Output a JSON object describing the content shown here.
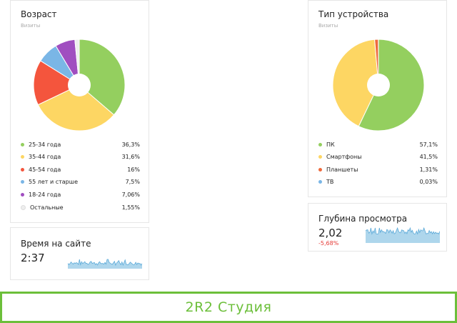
{
  "age_card": {
    "title": "Возраст",
    "subtitle": "Визиты",
    "legend": [
      {
        "label": "25-34 года",
        "value": "36,3%",
        "color": "#94cf5f"
      },
      {
        "label": "35-44 года",
        "value": "31,6%",
        "color": "#fdd663"
      },
      {
        "label": "45-54 года",
        "value": "16%",
        "color": "#f4553d"
      },
      {
        "label": "55 лет и старше",
        "value": "7,5%",
        "color": "#7ab6e6"
      },
      {
        "label": "18-24 года",
        "value": "7,06%",
        "color": "#a04ec0"
      },
      {
        "label": "Остальные",
        "value": "1,55%",
        "color": "#eeeeee"
      }
    ]
  },
  "device_card": {
    "title": "Тип устройства",
    "subtitle": "Визиты",
    "legend": [
      {
        "label": "ПК",
        "value": "57,1%",
        "color": "#94cf5f"
      },
      {
        "label": "Смартфоны",
        "value": "41,5%",
        "color": "#fdd663"
      },
      {
        "label": "Планшеты",
        "value": "1,31%",
        "color": "#ee6a3c"
      },
      {
        "label": "ТВ",
        "value": "0,03%",
        "color": "#7ab6e6"
      }
    ]
  },
  "time_card": {
    "title": "Время на сайте",
    "value": "2:37"
  },
  "depth_card": {
    "title": "Глубина просмотра",
    "value": "2,02",
    "delta": "-5,68%"
  },
  "banner": {
    "text": "2R2 Студия"
  },
  "chart_data": [
    {
      "type": "pie",
      "title": "Возраст",
      "subtitle": "Визиты",
      "categories": [
        "25-34 года",
        "35-44 года",
        "45-54 года",
        "55 лет и старше",
        "18-24 года",
        "Остальные"
      ],
      "values": [
        36.3,
        31.6,
        16,
        7.5,
        7.06,
        1.55
      ],
      "colors": [
        "#94cf5f",
        "#fdd663",
        "#f4553d",
        "#7ab6e6",
        "#a04ec0",
        "#eeeeee"
      ]
    },
    {
      "type": "pie",
      "title": "Тип устройства",
      "subtitle": "Визиты",
      "categories": [
        "ПК",
        "Смартфоны",
        "Планшеты",
        "ТВ"
      ],
      "values": [
        57.1,
        41.5,
        1.31,
        0.03
      ],
      "colors": [
        "#94cf5f",
        "#fdd663",
        "#ee6a3c",
        "#7ab6e6"
      ]
    }
  ]
}
